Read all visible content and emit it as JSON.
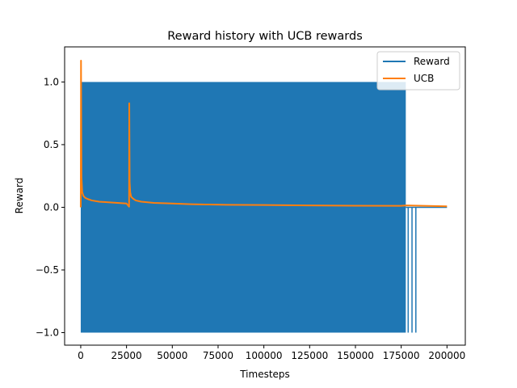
{
  "chart_data": {
    "type": "line",
    "title": "Reward history with UCB rewards",
    "xlabel": "Timesteps",
    "ylabel": "Reward",
    "xlim": [
      -8800,
      210000
    ],
    "ylim": [
      -1.1,
      1.28
    ],
    "xticks": [
      0,
      25000,
      50000,
      75000,
      100000,
      125000,
      150000,
      175000,
      200000
    ],
    "xtick_labels": [
      "0",
      "25000",
      "50000",
      "75000",
      "100000",
      "125000",
      "150000",
      "175000",
      "200000"
    ],
    "yticks": [
      -1.0,
      -0.5,
      0.0,
      0.5,
      1.0
    ],
    "ytick_labels": [
      "−1.0",
      "−0.5",
      "0.0",
      "0.5",
      "1.0"
    ],
    "grid": false,
    "legend_position": "top-right",
    "series": [
      {
        "name": "Reward",
        "color": "#1f77b4",
        "style": "dense-oscillation",
        "band": {
          "x_start": 0,
          "x_end": 177500,
          "y_min": -1.0,
          "y_max": 1.0
        },
        "tail_spikes_x": [
          178800,
          180900,
          183000
        ],
        "tail_spike_y": -1.0,
        "baseline_after_band": 0.0,
        "x_end": 200000
      },
      {
        "name": "UCB",
        "color": "#ff7f0e",
        "x": [
          0,
          150,
          400,
          800,
          1500,
          2500,
          4000,
          6000,
          10000,
          15000,
          20000,
          25000,
          26400,
          26500,
          26700,
          27000,
          27500,
          28500,
          30000,
          33000,
          40000,
          50000,
          60000,
          70000,
          80000,
          100000,
          125000,
          150000,
          175000,
          178000,
          200000
        ],
        "y": [
          0.0,
          1.17,
          0.24,
          0.12,
          0.09,
          0.075,
          0.065,
          0.055,
          0.045,
          0.04,
          0.035,
          0.03,
          0.005,
          0.83,
          0.2,
          0.12,
          0.085,
          0.07,
          0.055,
          0.045,
          0.035,
          0.03,
          0.025,
          0.022,
          0.02,
          0.018,
          0.015,
          0.013,
          0.012,
          0.015,
          0.008
        ]
      }
    ]
  }
}
